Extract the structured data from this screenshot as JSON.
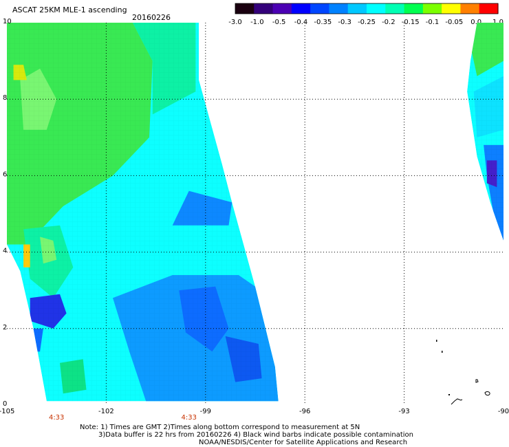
{
  "header": {
    "title": "ASCAT 25KM MLE-1 ascending",
    "date": "20160226"
  },
  "colorbar": {
    "ticks": [
      "-3.0",
      "-1.0",
      "-0.5",
      "-0.4",
      "-0.35",
      "-0.3",
      "-0.25",
      "-0.2",
      "-0.15",
      "-0.1",
      "-0.05",
      "0.0",
      "1.0"
    ],
    "colors": [
      "#1a0010",
      "#34007a",
      "#4b00b4",
      "#0000ff",
      "#0046ff",
      "#0082ff",
      "#00c8ff",
      "#00ffff",
      "#00ffb4",
      "#00ff50",
      "#7cff00",
      "#ffff00",
      "#ff8000",
      "#ff0000"
    ]
  },
  "map": {
    "x_axis": {
      "labels": [
        "-105",
        "-102",
        "-99",
        "-96",
        "-93",
        "-90"
      ],
      "values": [
        -105,
        -102,
        -99,
        -96,
        -93,
        -90
      ]
    },
    "y_axis": {
      "labels": [
        "0",
        "2",
        "4",
        "6",
        "8",
        "10"
      ],
      "values": [
        0,
        2,
        4,
        6,
        8,
        10
      ]
    },
    "pass_times": [
      {
        "label": "4:33",
        "lon": -103.5
      },
      {
        "label": "4:33",
        "lon": -99.5
      }
    ],
    "swaths": [
      {
        "name": "left-swath",
        "polygon": [
          [
            -105,
            10
          ],
          [
            -99.2,
            10
          ],
          [
            -99.2,
            8.5
          ],
          [
            -98.5,
            6.3
          ],
          [
            -98.2,
            5.3
          ],
          [
            -97.5,
            3.1
          ],
          [
            -96.9,
            1.0
          ],
          [
            -96.8,
            0.1
          ],
          [
            -103.8,
            0.1
          ],
          [
            -104.2,
            2.0
          ],
          [
            -104.6,
            3.5
          ],
          [
            -105,
            4.2
          ]
        ],
        "regions": [
          {
            "color": "#2ee84a",
            "polygon": [
              [
                -105,
                10
              ],
              [
                -101.2,
                10
              ],
              [
                -100.6,
                9.0
              ],
              [
                -100.7,
                7.0
              ],
              [
                -101.8,
                6.0
              ],
              [
                -103.3,
                5.2
              ],
              [
                -104.4,
                4.2
              ],
              [
                -105,
                4.2
              ]
            ]
          },
          {
            "color": "#72f56a",
            "polygon": [
              [
                -104.6,
                8.5
              ],
              [
                -104.0,
                8.8
              ],
              [
                -103.5,
                8.0
              ],
              [
                -103.8,
                7.2
              ],
              [
                -104.5,
                7.2
              ]
            ]
          },
          {
            "color": "#d6e800",
            "polygon": [
              [
                -104.8,
                8.9
              ],
              [
                -104.5,
                8.9
              ],
              [
                -104.4,
                8.5
              ],
              [
                -104.8,
                8.5
              ]
            ]
          },
          {
            "color": "#00f0a0",
            "polygon": [
              [
                -101.2,
                10
              ],
              [
                -99.3,
                10
              ],
              [
                -99.3,
                8.2
              ],
              [
                -100.6,
                7.6
              ],
              [
                -100.6,
                9.0
              ]
            ]
          },
          {
            "color": "#00f0a0",
            "polygon": [
              [
                -104.5,
                4.6
              ],
              [
                -103.4,
                4.7
              ],
              [
                -103.0,
                3.6
              ],
              [
                -103.6,
                2.8
              ],
              [
                -104.3,
                3.3
              ]
            ]
          },
          {
            "color": "#72f56a",
            "polygon": [
              [
                -104.0,
                4.4
              ],
              [
                -103.6,
                4.3
              ],
              [
                -103.5,
                3.8
              ],
              [
                -103.9,
                3.7
              ]
            ]
          },
          {
            "color": "#ffc800",
            "polygon": [
              [
                -104.5,
                4.2
              ],
              [
                -104.3,
                4.2
              ],
              [
                -104.3,
                3.6
              ],
              [
                -104.5,
                3.6
              ]
            ]
          },
          {
            "color": "#00e080",
            "polygon": [
              [
                -103.4,
                1.1
              ],
              [
                -102.7,
                1.2
              ],
              [
                -102.6,
                0.4
              ],
              [
                -103.3,
                0.3
              ]
            ]
          },
          {
            "color": "#0082ff",
            "polygon": [
              [
                -100.0,
                4.7
              ],
              [
                -98.3,
                4.7
              ],
              [
                -98.2,
                5.3
              ],
              [
                -99.5,
                5.6
              ]
            ]
          },
          {
            "color": "#0096ff",
            "polygon": [
              [
                -101.8,
                2.8
              ],
              [
                -100.0,
                3.4
              ],
              [
                -98.0,
                3.4
              ],
              [
                -97.5,
                3.1
              ],
              [
                -96.9,
                1.0
              ],
              [
                -96.8,
                0.1
              ],
              [
                -100.8,
                0.1
              ],
              [
                -101.3,
                1.4
              ]
            ]
          },
          {
            "color": "#0064ff",
            "polygon": [
              [
                -99.8,
                3.0
              ],
              [
                -98.7,
                3.1
              ],
              [
                -98.3,
                2.0
              ],
              [
                -98.8,
                1.4
              ],
              [
                -99.6,
                1.9
              ]
            ]
          },
          {
            "color": "#0050f0",
            "polygon": [
              [
                -98.4,
                1.8
              ],
              [
                -97.4,
                1.6
              ],
              [
                -97.3,
                0.7
              ],
              [
                -98.1,
                0.6
              ]
            ]
          },
          {
            "color": "#1428e6",
            "polygon": [
              [
                -104.3,
                2.8
              ],
              [
                -103.4,
                2.9
              ],
              [
                -103.2,
                2.4
              ],
              [
                -103.6,
                2.0
              ],
              [
                -104.3,
                2.2
              ]
            ]
          },
          {
            "color": "#0064ff",
            "polygon": [
              [
                -104.4,
                2.0
              ],
              [
                -103.9,
                2.0
              ],
              [
                -104.0,
                1.4
              ],
              [
                -104.3,
                1.4
              ]
            ]
          }
        ]
      },
      {
        "name": "right-swath",
        "polygon": [
          [
            -90.8,
            10
          ],
          [
            -90.0,
            10
          ],
          [
            -90.0,
            4.3
          ],
          [
            -90.4,
            5.3
          ],
          [
            -90.8,
            6.5
          ],
          [
            -91.1,
            8.2
          ],
          [
            -91.0,
            9.0
          ]
        ],
        "regions": [
          {
            "color": "#2ee84a",
            "polygon": [
              [
                -90.8,
                10
              ],
              [
                -90.0,
                10
              ],
              [
                -90.0,
                9.0
              ],
              [
                -90.8,
                8.6
              ],
              [
                -91.0,
                9.4
              ]
            ]
          },
          {
            "color": "#00e0ff",
            "polygon": [
              [
                -90.9,
                8.2
              ],
              [
                -90.0,
                8.6
              ],
              [
                -90.0,
                7.2
              ],
              [
                -90.8,
                7.0
              ]
            ]
          },
          {
            "color": "#0078ff",
            "polygon": [
              [
                -90.6,
                6.8
              ],
              [
                -90.0,
                6.8
              ],
              [
                -90.0,
                4.3
              ],
              [
                -90.3,
                5.0
              ],
              [
                -90.5,
                6.0
              ]
            ]
          },
          {
            "color": "#3a14c8",
            "polygon": [
              [
                -90.5,
                6.4
              ],
              [
                -90.2,
                6.4
              ],
              [
                -90.2,
                5.7
              ],
              [
                -90.5,
                5.8
              ]
            ]
          }
        ]
      }
    ]
  }
}
